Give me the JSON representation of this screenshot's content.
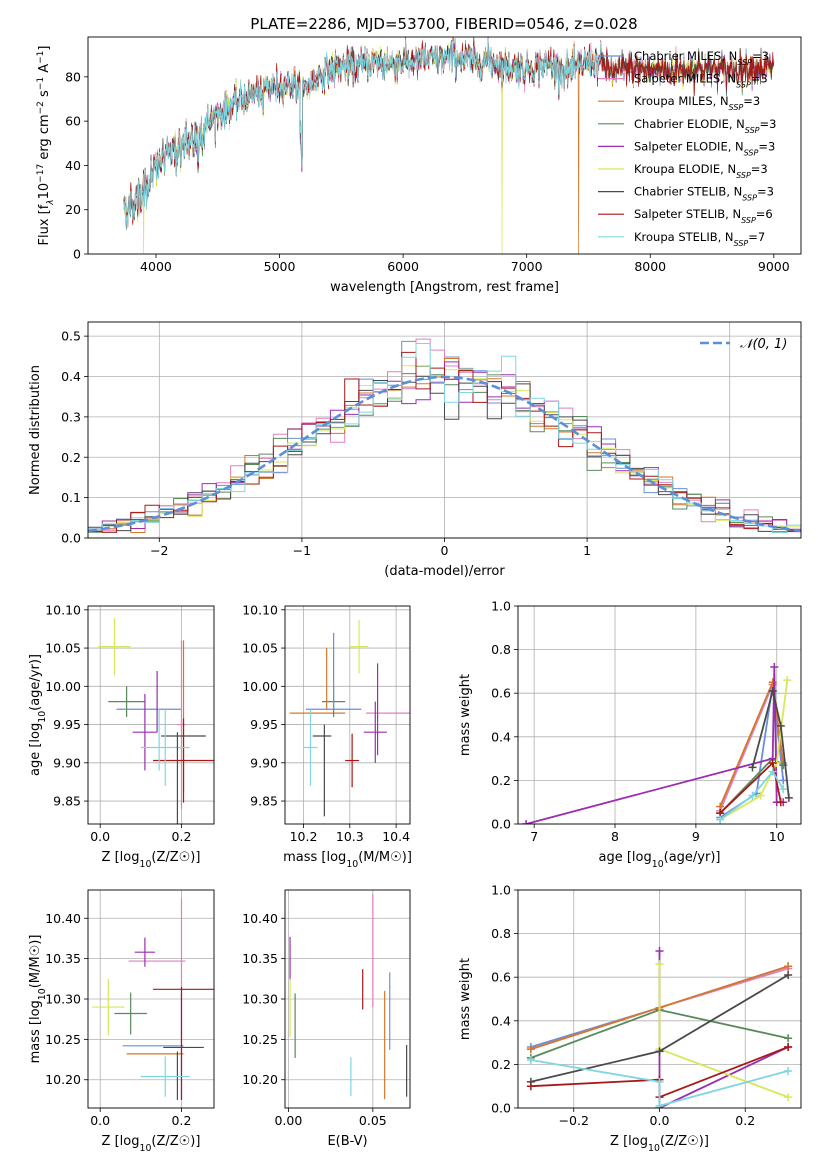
{
  "figure": {
    "title": "PLATE=2286, MJD=53700, FIBERID=0546, z=0.028"
  },
  "series_styles": [
    {
      "name": "Chabrier MILES",
      "nssp": "3",
      "color": "#6a8fd8"
    },
    {
      "name": "Salpeter MILES",
      "nssp": "3",
      "color": "#e37fbf"
    },
    {
      "name": "Kroupa MILES",
      "nssp": "3",
      "color": "#d4782c"
    },
    {
      "name": "Chabrier ELODIE",
      "nssp": "3",
      "color": "#5a8a5c"
    },
    {
      "name": "Salpeter ELODIE",
      "nssp": "3",
      "color": "#9a2db0"
    },
    {
      "name": "Kroupa ELODIE",
      "nssp": "3",
      "color": "#d8e85a"
    },
    {
      "name": "Chabrier STELIB",
      "nssp": "3",
      "color": "#4a4a4a"
    },
    {
      "name": "Salpeter STELIB",
      "nssp": "6",
      "color": "#a81818"
    },
    {
      "name": "Kroupa STELIB",
      "nssp": "7",
      "color": "#7fd6e0"
    }
  ],
  "chart_data": [
    {
      "id": "spectrum",
      "type": "line",
      "xlabel": "wavelength [Angstrom, rest frame]",
      "ylabel": "Flux [f",
      "xlim": [
        3450,
        9220
      ],
      "ylim": [
        0,
        98
      ],
      "xticks": [
        4000,
        5000,
        6000,
        7000,
        8000,
        9000
      ],
      "yticks": [
        0,
        20,
        40,
        60,
        80
      ],
      "grid": false,
      "legend_position": "right",
      "continuum_x": [
        3750,
        3900,
        4000,
        4100,
        4200,
        4300,
        4400,
        4500,
        4600,
        4700,
        4800,
        4900,
        5000,
        5100,
        5200,
        5300,
        5400,
        5500,
        5600,
        5700,
        5800,
        5900,
        6000,
        6100,
        6200,
        6300,
        6400,
        6500,
        6600,
        6700,
        6800,
        6900,
        7000,
        7100,
        7200,
        7300,
        7400,
        7500,
        7600,
        7700,
        7800,
        8000,
        8200,
        8400,
        8600,
        8800,
        9000
      ],
      "continuum_y": [
        20,
        28,
        38,
        45,
        48,
        52,
        58,
        63,
        66,
        70,
        73,
        75,
        76,
        77,
        74,
        80,
        83,
        85,
        84,
        86,
        87,
        86,
        87,
        87,
        88,
        88,
        89,
        88,
        87,
        88,
        85,
        84,
        84,
        85,
        86,
        82,
        84,
        87,
        86,
        82,
        84,
        83,
        83,
        84,
        83,
        84,
        84
      ],
      "dropouts": [
        {
          "series": 5,
          "x": 3900
        },
        {
          "series": 5,
          "x": 6800
        },
        {
          "series": 2,
          "x": 7420
        }
      ]
    },
    {
      "id": "residuals",
      "type": "bar",
      "xlabel": "(data-model)/error",
      "ylabel": "Normed distribution",
      "xlim": [
        -2.5,
        2.5
      ],
      "ylim": [
        0,
        0.535
      ],
      "xticks": [
        -2,
        -1,
        0,
        1,
        2
      ],
      "yticks": [
        0.0,
        0.1,
        0.2,
        0.3,
        0.4,
        0.5
      ],
      "grid": true,
      "bin_width": 0.1,
      "legend_position": "top-right",
      "reference_curve": {
        "name": "𝒩(0, 1)",
        "mean": 0,
        "sigma": 1,
        "color": "#5b8fd9"
      }
    },
    {
      "id": "age_vs_Z",
      "type": "scatter",
      "xlabel": "Z [log10(Z/Z☉)]",
      "ylabel": "age  [log10(age/yr)]",
      "xlim": [
        -0.03,
        0.28
      ],
      "ylim": [
        9.82,
        10.105
      ],
      "xticks": [
        0.0,
        0.2
      ],
      "xticklabels": [
        "0.0",
        "0.2"
      ],
      "yticks": [
        9.85,
        9.9,
        9.95,
        10.0,
        10.05,
        10.1
      ],
      "grid": true,
      "points": [
        {
          "s": 0,
          "x": 0.12,
          "y": 9.97,
          "xe": 0.08,
          "ye": 0.0
        },
        {
          "s": 1,
          "x": 0.2,
          "y": 9.95,
          "xe": 0.01,
          "ye": 0.11
        },
        {
          "s": 2,
          "x": 0.205,
          "y": 9.96,
          "xe": 0.0,
          "ye": 0.1
        },
        {
          "s": 3,
          "x": 0.065,
          "y": 9.98,
          "xe": 0.045,
          "ye": 0.02
        },
        {
          "s": 4,
          "x": 0.11,
          "y": 9.94,
          "xe": 0.03,
          "ye": 0.05
        },
        {
          "s": 5,
          "x": 0.035,
          "y": 10.052,
          "xe": 0.04,
          "ye": 0.037
        },
        {
          "s": 6,
          "x": 0.205,
          "y": 9.935,
          "xe": 0.055,
          "ye": 0.0
        },
        {
          "s": 7,
          "x": 0.205,
          "y": 9.903,
          "xe": 0.075,
          "ye": 0.055
        },
        {
          "s": 8,
          "x": 0.16,
          "y": 9.92,
          "xe": 0.06,
          "ye": 0.05
        },
        {
          "s": 6,
          "x": 0.19,
          "y": 9.88,
          "xe": 0.0,
          "ye": 0.06
        },
        {
          "s": 4,
          "x": 0.14,
          "y": 9.98,
          "xe": 0.0,
          "ye": 0.04
        },
        {
          "s": 8,
          "x": 0.145,
          "y": 9.93,
          "xe": 0.0,
          "ye": 0.04
        }
      ]
    },
    {
      "id": "age_vs_mass",
      "type": "scatter",
      "xlabel": "mass [log10(M/M☉)]",
      "ylabel": "",
      "xlim": [
        10.16,
        10.43
      ],
      "ylim": [
        9.82,
        10.105
      ],
      "xticks": [
        10.2,
        10.3,
        10.4
      ],
      "xticklabels": [
        "10.2",
        "10.3",
        "10.4"
      ],
      "yticks": [
        9.85,
        9.9,
        9.95,
        10.0,
        10.05,
        10.1
      ],
      "grid": true,
      "points": [
        {
          "s": 0,
          "x": 10.265,
          "y": 9.97,
          "xe": 0.06,
          "ye": 0.0
        },
        {
          "s": 1,
          "x": 10.385,
          "y": 9.965,
          "xe": 0.05,
          "ye": 0.0
        },
        {
          "s": 2,
          "x": 10.23,
          "y": 9.965,
          "xe": 0.06,
          "ye": 0.0
        },
        {
          "s": 3,
          "x": 10.265,
          "y": 9.98,
          "xe": 0.025,
          "ye": 0.02
        },
        {
          "s": 4,
          "x": 10.355,
          "y": 9.94,
          "xe": 0.025,
          "ye": 0.04
        },
        {
          "s": 5,
          "x": 10.32,
          "y": 10.052,
          "xe": 0.02,
          "ye": 0.035
        },
        {
          "s": 6,
          "x": 10.24,
          "y": 9.935,
          "xe": 0.02,
          "ye": 0.0
        },
        {
          "s": 7,
          "x": 10.305,
          "y": 9.903,
          "xe": 0.015,
          "ye": 0.035
        },
        {
          "s": 8,
          "x": 10.215,
          "y": 9.92,
          "xe": 0.015,
          "ye": 0.05
        },
        {
          "s": 0,
          "x": 10.265,
          "y": 10.02,
          "xe": 0.0,
          "ye": 0.05
        },
        {
          "s": 2,
          "x": 10.25,
          "y": 10.01,
          "xe": 0.0,
          "ye": 0.04
        },
        {
          "s": 4,
          "x": 10.36,
          "y": 9.97,
          "xe": 0.0,
          "ye": 0.06
        },
        {
          "s": 6,
          "x": 10.245,
          "y": 9.89,
          "xe": 0.0,
          "ye": 0.06
        }
      ]
    },
    {
      "id": "weight_vs_age",
      "type": "line",
      "xlabel": "age  [log10(age/yr)]",
      "ylabel": "mass weight",
      "xlim": [
        6.8,
        10.3
      ],
      "ylim": [
        0.0,
        1.0
      ],
      "xticks": [
        7,
        8,
        9,
        10
      ],
      "xticklabels": [
        "7",
        "8",
        "9",
        "10"
      ],
      "yticks": [
        0.0,
        0.2,
        0.4,
        0.6,
        0.8,
        1.0
      ],
      "grid": true,
      "series": [
        {
          "s": 0,
          "x": [
            9.3,
            9.75,
            9.95,
            10.08
          ],
          "y": [
            0.03,
            0.14,
            0.64,
            0.2
          ]
        },
        {
          "s": 1,
          "x": [
            9.3,
            9.95,
            10.08
          ],
          "y": [
            0.06,
            0.64,
            0.28
          ]
        },
        {
          "s": 2,
          "x": [
            9.3,
            9.95,
            10.08
          ],
          "y": [
            0.08,
            0.65,
            0.27
          ]
        },
        {
          "s": 3,
          "x": [
            9.3,
            9.95,
            10.08
          ],
          "y": [
            0.05,
            0.3,
            0.27
          ]
        },
        {
          "s": 4,
          "x": [
            6.9,
            9.95,
            9.97,
            10.0,
            10.08
          ],
          "y": [
            0.0,
            0.3,
            0.72,
            0.1,
            0.1
          ]
        },
        {
          "s": 5,
          "x": [
            9.3,
            9.8,
            10.0,
            10.13
          ],
          "y": [
            0.02,
            0.13,
            0.28,
            0.66
          ]
        },
        {
          "s": 6,
          "x": [
            9.7,
            9.95,
            10.05,
            10.15
          ],
          "y": [
            0.26,
            0.61,
            0.45,
            0.12
          ]
        },
        {
          "s": 7,
          "x": [
            9.3,
            9.95,
            10.05
          ],
          "y": [
            0.05,
            0.28,
            0.1
          ]
        },
        {
          "s": 8,
          "x": [
            9.3,
            9.7,
            9.95,
            10.08
          ],
          "y": [
            0.02,
            0.13,
            0.24,
            0.16
          ]
        }
      ]
    },
    {
      "id": "mass_vs_Z",
      "type": "scatter",
      "xlabel": "Z [log10(Z/Z☉)]",
      "ylabel": "mass [log10(M/M☉)]",
      "xlim": [
        -0.03,
        0.28
      ],
      "ylim": [
        10.165,
        10.435
      ],
      "xticks": [
        0.0,
        0.2
      ],
      "xticklabels": [
        "0.0",
        "0.2"
      ],
      "yticks": [
        10.2,
        10.25,
        10.3,
        10.35,
        10.4
      ],
      "grid": true,
      "points": [
        {
          "s": 0,
          "x": 0.13,
          "y": 10.242,
          "xe": 0.075,
          "ye": 0.0
        },
        {
          "s": 1,
          "x": 0.2,
          "y": 10.3,
          "xe": 0.0,
          "ye": 0.125
        },
        {
          "s": 1,
          "x": 0.14,
          "y": 10.347,
          "xe": 0.07,
          "ye": 0.0
        },
        {
          "s": 2,
          "x": 0.135,
          "y": 10.232,
          "xe": 0.07,
          "ye": 0.0
        },
        {
          "s": 3,
          "x": 0.075,
          "y": 10.282,
          "xe": 0.04,
          "ye": 0.026
        },
        {
          "s": 4,
          "x": 0.11,
          "y": 10.358,
          "xe": 0.025,
          "ye": 0.018
        },
        {
          "s": 5,
          "x": 0.02,
          "y": 10.29,
          "xe": 0.04,
          "ye": 0.035
        },
        {
          "s": 6,
          "x": 0.205,
          "y": 10.24,
          "xe": 0.05,
          "ye": 0.0
        },
        {
          "s": 6,
          "x": 0.19,
          "y": 10.205,
          "xe": 0.0,
          "ye": 0.03
        },
        {
          "s": 7,
          "x": 0.205,
          "y": 10.312,
          "xe": 0.075,
          "ye": 0.0
        },
        {
          "s": 7,
          "x": 0.2,
          "y": 10.245,
          "xe": 0.0,
          "ye": 0.07
        },
        {
          "s": 8,
          "x": 0.16,
          "y": 10.204,
          "xe": 0.06,
          "ye": 0.025
        }
      ]
    },
    {
      "id": "mass_vs_ebv",
      "type": "scatter",
      "xlabel": "E(B-V)",
      "ylabel": "",
      "xlim": [
        -0.002,
        0.072
      ],
      "ylim": [
        10.165,
        10.435
      ],
      "xticks": [
        0.0,
        0.05
      ],
      "xticklabels": [
        "0.00",
        "0.05"
      ],
      "yticks": [
        10.2,
        10.25,
        10.3,
        10.35,
        10.4
      ],
      "grid": true,
      "points": [
        {
          "s": 0,
          "x": 0.06,
          "y": 10.285,
          "xe": 0.0,
          "ye": 0.048
        },
        {
          "s": 1,
          "x": 0.05,
          "y": 10.36,
          "xe": 0.0,
          "ye": 0.07
        },
        {
          "s": 2,
          "x": 0.057,
          "y": 10.243,
          "xe": 0.0,
          "ye": 0.067
        },
        {
          "s": 3,
          "x": 0.004,
          "y": 10.267,
          "xe": 0.0,
          "ye": 0.04
        },
        {
          "s": 4,
          "x": 0.001,
          "y": 10.35,
          "xe": 0.0,
          "ye": 0.027
        },
        {
          "s": 5,
          "x": 0.001,
          "y": 10.289,
          "xe": 0.0,
          "ye": 0.036
        },
        {
          "s": 6,
          "x": 0.07,
          "y": 10.211,
          "xe": 0.0,
          "ye": 0.032
        },
        {
          "s": 7,
          "x": 0.044,
          "y": 10.312,
          "xe": 0.0,
          "ye": 0.025
        },
        {
          "s": 8,
          "x": 0.037,
          "y": 10.204,
          "xe": 0.0,
          "ye": 0.024
        }
      ]
    },
    {
      "id": "weight_vs_Z",
      "type": "line",
      "xlabel": "Z [log10(Z/Z☉)]",
      "ylabel": "mass weight",
      "xlim": [
        -0.33,
        0.33
      ],
      "ylim": [
        0.0,
        1.0
      ],
      "xticks": [
        -0.2,
        0.0,
        0.2
      ],
      "xticklabels": [
        "−0.2",
        "0.0",
        "0.2"
      ],
      "yticks": [
        0.0,
        0.2,
        0.4,
        0.6,
        0.8,
        1.0
      ],
      "grid": true,
      "series": [
        {
          "s": 0,
          "x": [
            -0.3,
            0.0,
            0.3
          ],
          "y": [
            0.28,
            0.46,
            0.65
          ]
        },
        {
          "s": 1,
          "x": [
            -0.3,
            0.0,
            0.3
          ],
          "y": [
            0.27,
            0.46,
            0.64
          ]
        },
        {
          "s": 2,
          "x": [
            -0.3,
            0.0,
            0.3
          ],
          "y": [
            0.27,
            0.46,
            0.65
          ]
        },
        {
          "s": 3,
          "x": [
            -0.3,
            0.0,
            0.3
          ],
          "y": [
            0.23,
            0.45,
            0.32
          ]
        },
        {
          "s": 4,
          "x": [
            0.0,
            0.0,
            0.3
          ],
          "y": [
            0.72,
            0.0,
            0.28
          ]
        },
        {
          "s": 5,
          "x": [
            0.0,
            0.0,
            0.3
          ],
          "y": [
            0.66,
            0.27,
            0.05
          ]
        },
        {
          "s": 6,
          "x": [
            -0.3,
            0.0,
            0.3
          ],
          "y": [
            0.12,
            0.26,
            0.61
          ]
        },
        {
          "s": 7,
          "x": [
            -0.3,
            0.0,
            0.0,
            0.3
          ],
          "y": [
            0.1,
            0.13,
            0.05,
            0.28
          ]
        },
        {
          "s": 8,
          "x": [
            -0.3,
            0.0,
            0.0,
            0.3
          ],
          "y": [
            0.22,
            0.12,
            0.01,
            0.17
          ]
        }
      ]
    }
  ]
}
